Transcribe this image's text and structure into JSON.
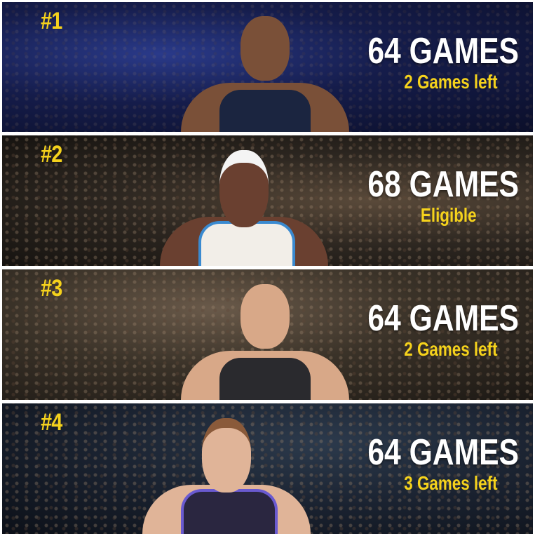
{
  "colors": {
    "accent": "#f5d21c",
    "text": "#ffffff"
  },
  "panels": [
    {
      "rank": "#1",
      "games": "64 GAMES",
      "status": "2 Games left",
      "jersey_color": "#1b2540",
      "skin": "#7a5038"
    },
    {
      "rank": "#2",
      "games": "68 GAMES",
      "status": "Eligible",
      "jersey_color": "#f2eee8",
      "skin": "#6a4030"
    },
    {
      "rank": "#3",
      "games": "64 GAMES",
      "status": "2 Games left",
      "jersey_color": "#2a2a2e",
      "skin": "#d8a888"
    },
    {
      "rank": "#4",
      "games": "64 GAMES",
      "status": "3 Games left",
      "jersey_color": "#2a2640",
      "skin": "#e0b498"
    }
  ]
}
